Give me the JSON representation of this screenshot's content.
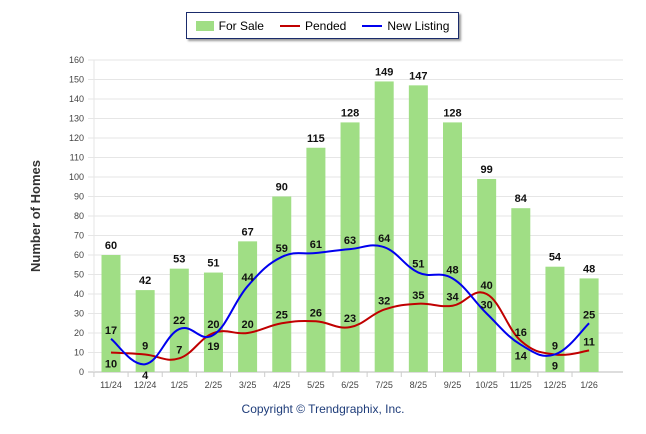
{
  "chart_data": {
    "type": "bar",
    "ylabel": "Number of Homes",
    "ylim": [
      0,
      160
    ],
    "yticks": [
      0,
      10,
      20,
      30,
      40,
      50,
      60,
      70,
      80,
      90,
      100,
      110,
      120,
      130,
      140,
      150,
      160
    ],
    "grid": true,
    "legend_position": "top-center",
    "categories": [
      "11/24",
      "12/24",
      "1/25",
      "2/25",
      "3/25",
      "4/25",
      "5/25",
      "6/25",
      "7/25",
      "8/25",
      "9/25",
      "10/25",
      "11/25",
      "12/25",
      "1/26"
    ],
    "series": [
      {
        "name": "For Sale",
        "kind": "bar",
        "color": "#a0de85",
        "values": [
          60,
          42,
          53,
          51,
          67,
          90,
          115,
          128,
          149,
          147,
          128,
          99,
          84,
          54,
          48
        ]
      },
      {
        "name": "Pended",
        "kind": "line",
        "color": "#c00000",
        "values": [
          10,
          9,
          7,
          20,
          20,
          25,
          26,
          23,
          32,
          35,
          34,
          40,
          16,
          9,
          11
        ]
      },
      {
        "name": "New Listing",
        "kind": "line",
        "color": "#0000ee",
        "values": [
          17,
          4,
          22,
          19,
          44,
          59,
          61,
          63,
          64,
          51,
          48,
          30,
          14,
          9,
          25
        ]
      }
    ]
  },
  "copyright": "Copyright © Trendgraphix, Inc."
}
